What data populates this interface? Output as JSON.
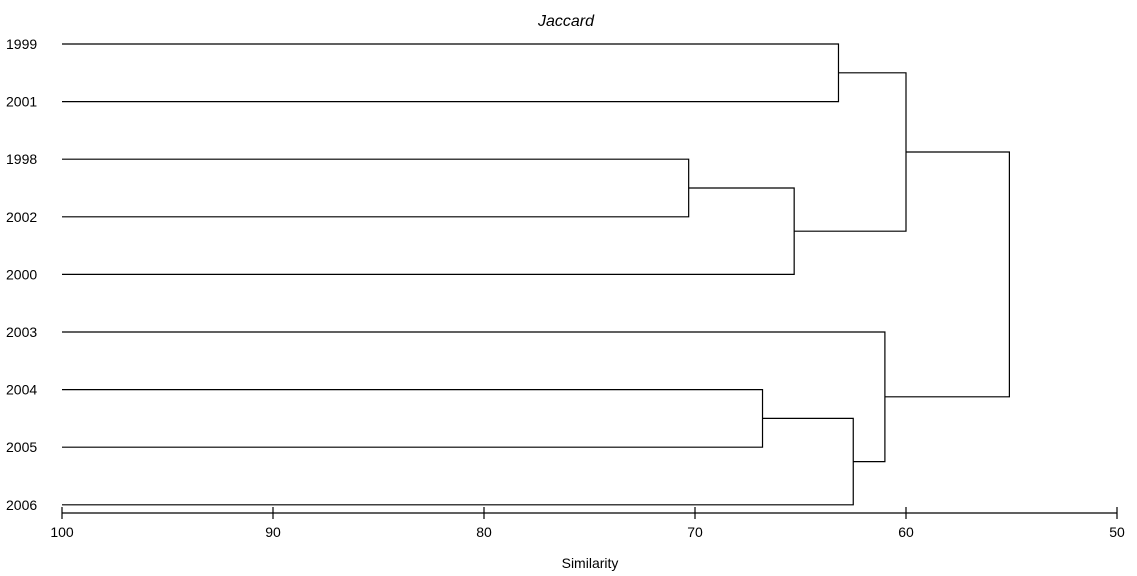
{
  "chart_data": {
    "type": "dendrogram",
    "title": "Jaccard",
    "xlabel": "Similarity",
    "xlim": [
      100,
      50
    ],
    "x_ticks": [
      100,
      90,
      80,
      70,
      60,
      50
    ],
    "x_tick_labels": [
      "100",
      "90",
      "80",
      "70",
      "60",
      "50"
    ],
    "leaves": [
      "1999",
      "2001",
      "1998",
      "2002",
      "2000",
      "2003",
      "2004",
      "2005",
      "2006"
    ],
    "merges": [
      {
        "id": "c1",
        "left": "1998",
        "right": "2002",
        "similarity": 70.3
      },
      {
        "id": "c2",
        "left": "c1",
        "right": "2000",
        "similarity": 65.3
      },
      {
        "id": "c3",
        "left": "1999",
        "right": "2001",
        "similarity": 63.2
      },
      {
        "id": "c4",
        "left": "c3",
        "right": "c2",
        "similarity": 60.0
      },
      {
        "id": "c5",
        "left": "2004",
        "right": "2005",
        "similarity": 66.8
      },
      {
        "id": "c6",
        "left": "c5",
        "right": "2006",
        "similarity": 62.5
      },
      {
        "id": "c7",
        "left": "2003",
        "right": "c6",
        "similarity": 61.0
      },
      {
        "id": "c8",
        "left": "c4",
        "right": "c7",
        "similarity": 55.1
      }
    ]
  }
}
